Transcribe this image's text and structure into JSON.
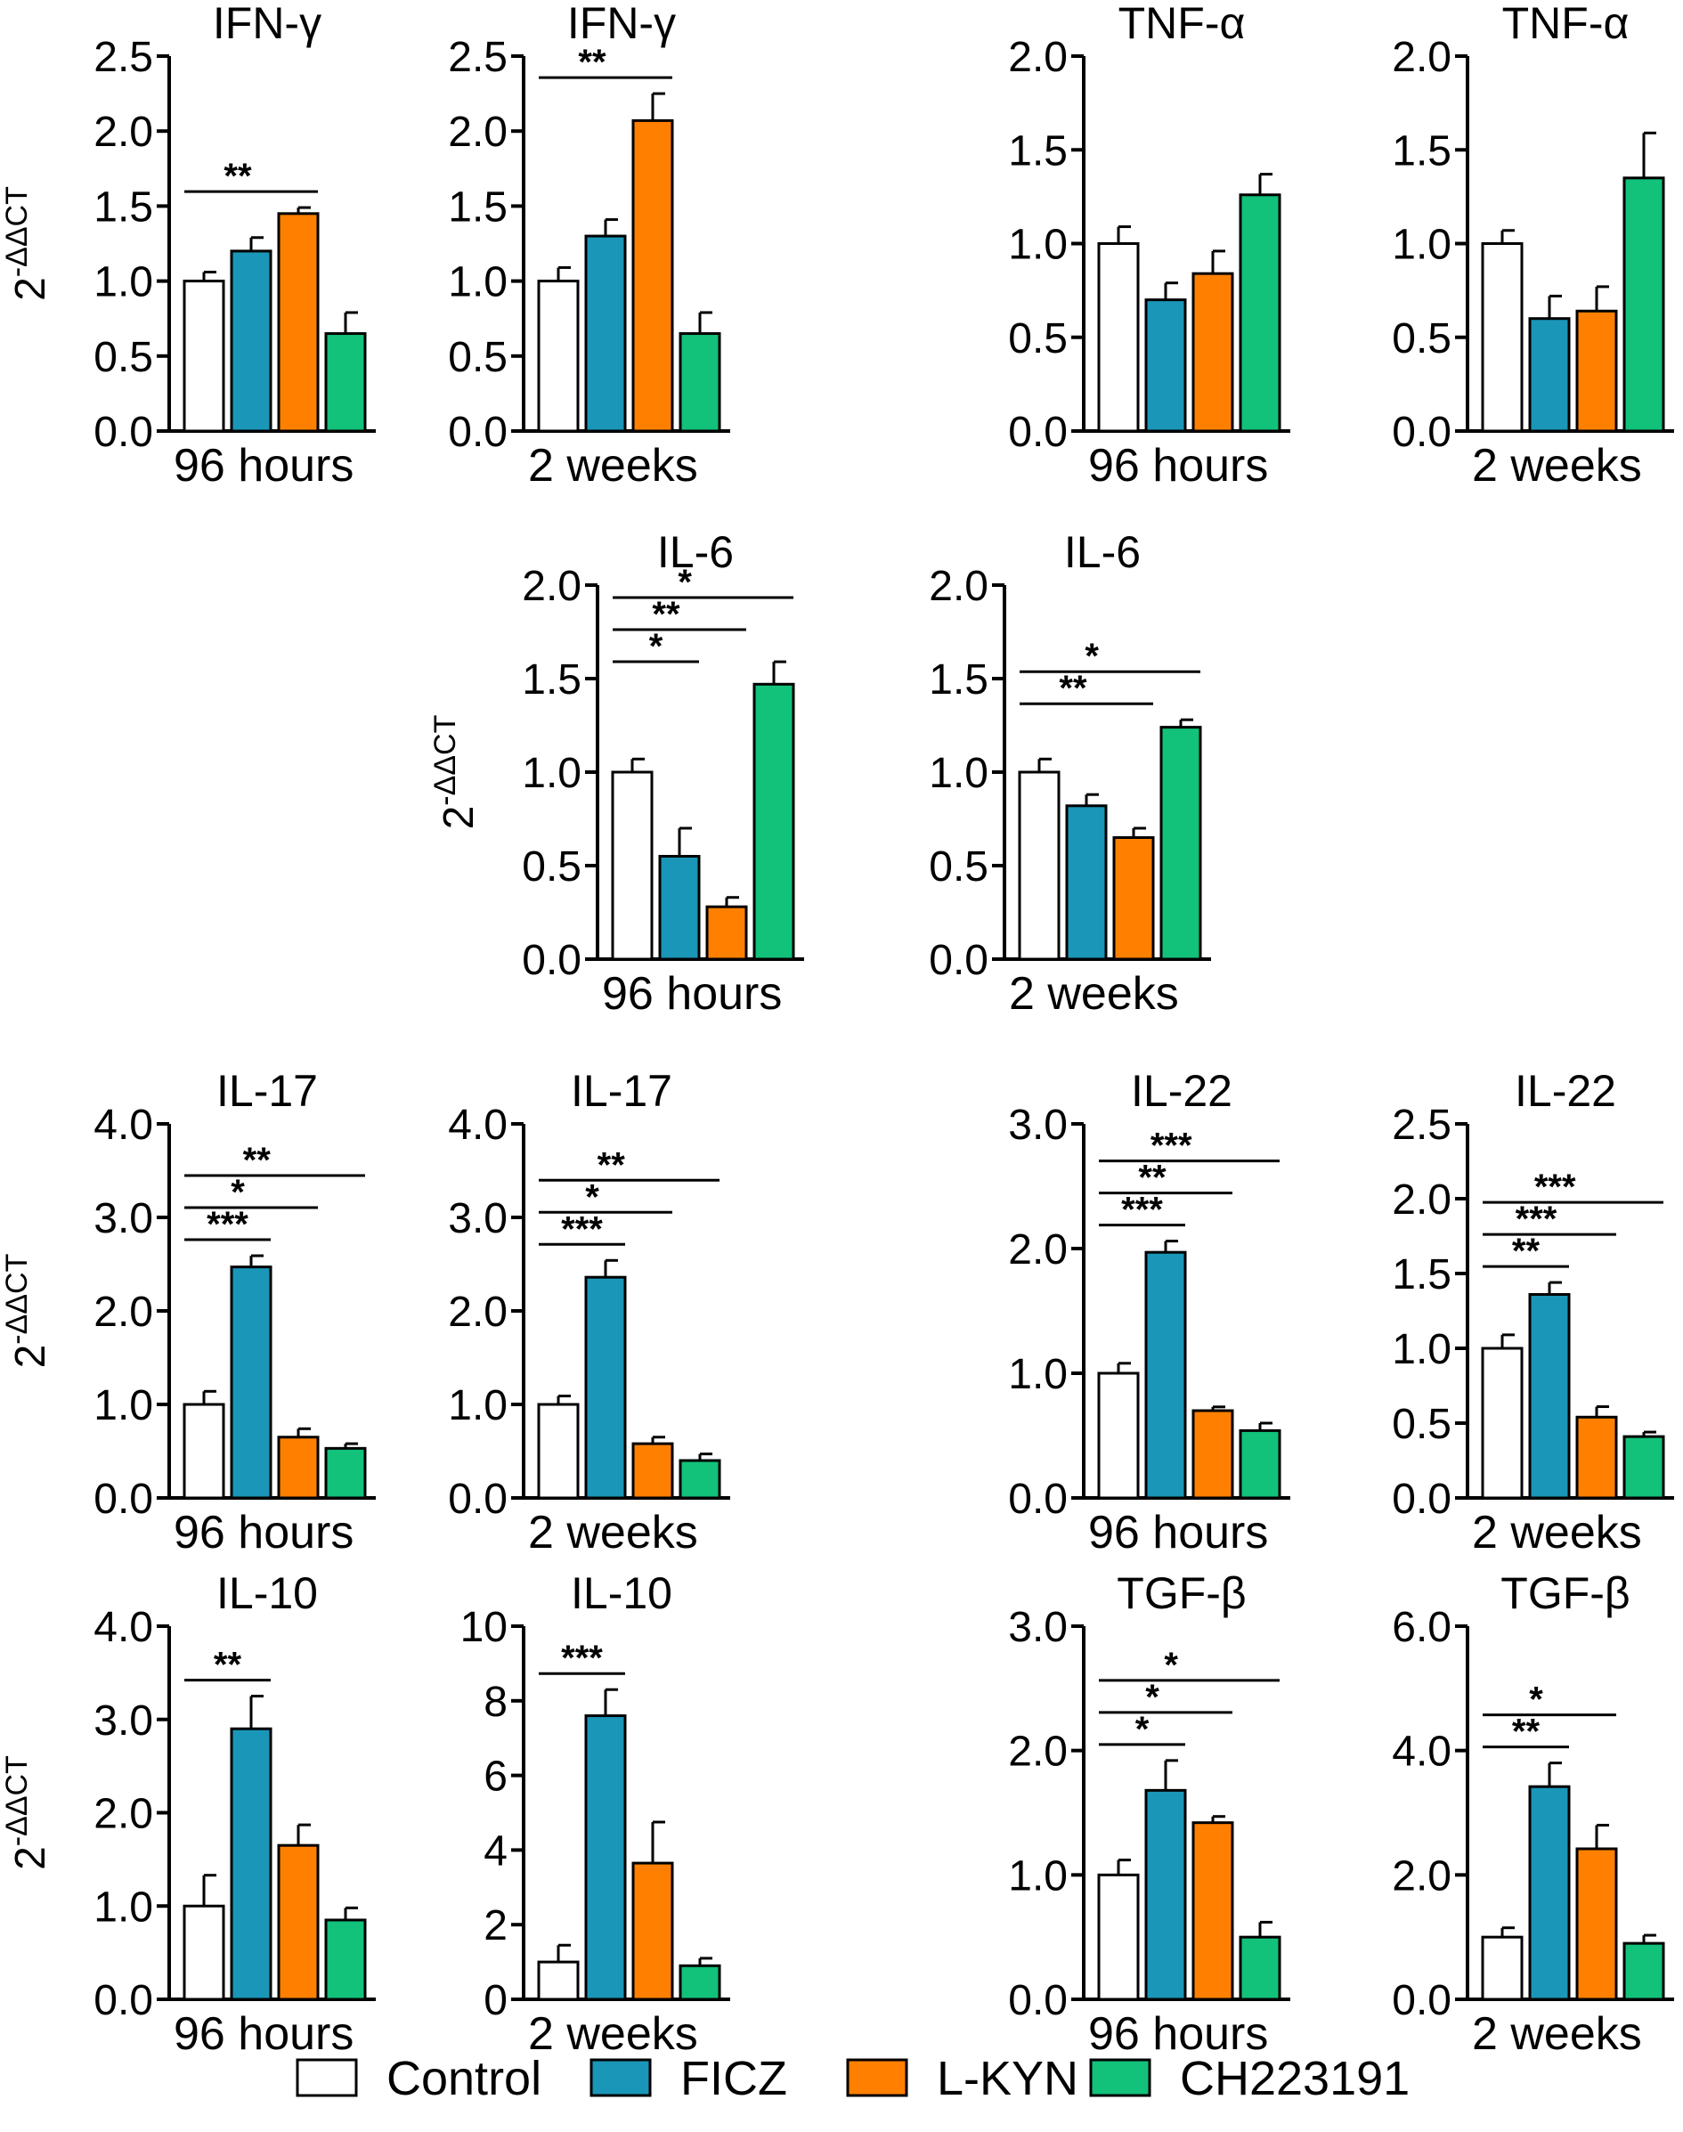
{
  "legend": [
    {
      "label": "Control",
      "color": "#ffffff"
    },
    {
      "label": "FICZ",
      "color": "#1a96b8"
    },
    {
      "label": "L-KYN",
      "color": "#ff8000"
    },
    {
      "label": "CH223191",
      "color": "#12c17a"
    }
  ],
  "ylabel_base": "2",
  "ylabel_exp": "-ΔΔCT",
  "chart_data": [
    {
      "type": "bar",
      "title": "IFN-γ",
      "xlabel": "96 hours",
      "ylim": [
        0,
        2.5
      ],
      "ticks": [
        "0.0",
        "0.5",
        "1.0",
        "1.5",
        "2.0",
        "2.5"
      ],
      "show_ylabel": true,
      "categories": [
        "Control",
        "FICZ",
        "L-KYN",
        "CH223191"
      ],
      "values": [
        1.0,
        1.2,
        1.45,
        0.65
      ],
      "errors": [
        0.06,
        0.09,
        0.04,
        0.14
      ],
      "sig": [
        {
          "from": 0,
          "to": 2,
          "label": "**"
        }
      ]
    },
    {
      "type": "bar",
      "title": "IFN-γ",
      "xlabel": "2 weeks",
      "ylim": [
        0,
        2.5
      ],
      "ticks": [
        "0.0",
        "0.5",
        "1.0",
        "1.5",
        "2.0",
        "2.5"
      ],
      "show_ylabel": false,
      "categories": [
        "Control",
        "FICZ",
        "L-KYN",
        "CH223191"
      ],
      "values": [
        1.0,
        1.3,
        2.07,
        0.65
      ],
      "errors": [
        0.09,
        0.11,
        0.18,
        0.14
      ],
      "sig": [
        {
          "from": 0,
          "to": 2,
          "label": "**"
        }
      ]
    },
    {
      "type": "bar",
      "title": "TNF-α",
      "xlabel": "96 hours",
      "ylim": [
        0,
        2.0
      ],
      "ticks": [
        "0.0",
        "0.5",
        "1.0",
        "1.5",
        "2.0"
      ],
      "show_ylabel": false,
      "categories": [
        "Control",
        "FICZ",
        "L-KYN",
        "CH223191"
      ],
      "values": [
        1.0,
        0.7,
        0.84,
        1.26
      ],
      "errors": [
        0.09,
        0.09,
        0.12,
        0.11
      ],
      "sig": []
    },
    {
      "type": "bar",
      "title": "TNF-α",
      "xlabel": "2 weeks",
      "ylim": [
        0,
        2.0
      ],
      "ticks": [
        "0.0",
        "0.5",
        "1.0",
        "1.5",
        "2.0"
      ],
      "show_ylabel": false,
      "categories": [
        "Control",
        "FICZ",
        "L-KYN",
        "CH223191"
      ],
      "values": [
        1.0,
        0.6,
        0.64,
        1.35
      ],
      "errors": [
        0.07,
        0.12,
        0.13,
        0.24
      ],
      "sig": []
    },
    {
      "type": "bar",
      "title": "IL-6",
      "xlabel": "96 hours",
      "ylim": [
        0,
        2.0
      ],
      "ticks": [
        "0.0",
        "0.5",
        "1.0",
        "1.5",
        "2.0"
      ],
      "show_ylabel": true,
      "categories": [
        "Control",
        "FICZ",
        "L-KYN",
        "CH223191"
      ],
      "values": [
        1.0,
        0.55,
        0.28,
        1.47
      ],
      "errors": [
        0.07,
        0.15,
        0.05,
        0.12
      ],
      "sig": [
        {
          "from": 0,
          "to": 1,
          "label": "*"
        },
        {
          "from": 0,
          "to": 2,
          "label": "**"
        },
        {
          "from": 0,
          "to": 3,
          "label": "*"
        }
      ]
    },
    {
      "type": "bar",
      "title": "IL-6",
      "xlabel": "2 weeks",
      "ylim": [
        0,
        2.0
      ],
      "ticks": [
        "0.0",
        "0.5",
        "1.0",
        "1.5",
        "2.0"
      ],
      "show_ylabel": false,
      "categories": [
        "Control",
        "FICZ",
        "L-KYN",
        "CH223191"
      ],
      "values": [
        1.0,
        0.82,
        0.65,
        1.24
      ],
      "errors": [
        0.07,
        0.06,
        0.05,
        0.04
      ],
      "sig": [
        {
          "from": 0,
          "to": 2,
          "label": "**"
        },
        {
          "from": 0,
          "to": 3,
          "label": "*"
        }
      ]
    },
    {
      "type": "bar",
      "title": "IL-17",
      "xlabel": "96 hours",
      "ylim": [
        0,
        4.0
      ],
      "ticks": [
        "0.0",
        "1.0",
        "2.0",
        "3.0",
        "4.0"
      ],
      "show_ylabel": true,
      "categories": [
        "Control",
        "FICZ",
        "L-KYN",
        "CH223191"
      ],
      "values": [
        1.0,
        2.47,
        0.65,
        0.53
      ],
      "errors": [
        0.14,
        0.12,
        0.09,
        0.05
      ],
      "sig": [
        {
          "from": 0,
          "to": 1,
          "label": "***"
        },
        {
          "from": 0,
          "to": 2,
          "label": "*"
        },
        {
          "from": 0,
          "to": 3,
          "label": "**"
        }
      ]
    },
    {
      "type": "bar",
      "title": "IL-17",
      "xlabel": "2 weeks",
      "ylim": [
        0,
        4.0
      ],
      "ticks": [
        "0.0",
        "1.0",
        "2.0",
        "3.0",
        "4.0"
      ],
      "show_ylabel": false,
      "categories": [
        "Control",
        "FICZ",
        "L-KYN",
        "CH223191"
      ],
      "values": [
        1.0,
        2.36,
        0.58,
        0.4
      ],
      "errors": [
        0.09,
        0.18,
        0.07,
        0.07
      ],
      "sig": [
        {
          "from": 0,
          "to": 1,
          "label": "***"
        },
        {
          "from": 0,
          "to": 2,
          "label": "*"
        },
        {
          "from": 0,
          "to": 3,
          "label": "**"
        }
      ]
    },
    {
      "type": "bar",
      "title": "IL-22",
      "xlabel": "96 hours",
      "ylim": [
        0,
        3.0
      ],
      "ticks": [
        "0.0",
        "1.0",
        "2.0",
        "3.0"
      ],
      "show_ylabel": false,
      "categories": [
        "Control",
        "FICZ",
        "L-KYN",
        "CH223191"
      ],
      "values": [
        1.0,
        1.97,
        0.7,
        0.54
      ],
      "errors": [
        0.08,
        0.09,
        0.03,
        0.06
      ],
      "sig": [
        {
          "from": 0,
          "to": 1,
          "label": "***"
        },
        {
          "from": 0,
          "to": 2,
          "label": "**"
        },
        {
          "from": 0,
          "to": 3,
          "label": "***"
        }
      ]
    },
    {
      "type": "bar",
      "title": "IL-22",
      "xlabel": "2 weeks",
      "ylim": [
        0,
        2.5
      ],
      "ticks": [
        "0.0",
        "0.5",
        "1.0",
        "1.5",
        "2.0",
        "2.5"
      ],
      "show_ylabel": false,
      "categories": [
        "Control",
        "FICZ",
        "L-KYN",
        "CH223191"
      ],
      "values": [
        1.0,
        1.36,
        0.54,
        0.41
      ],
      "errors": [
        0.09,
        0.08,
        0.07,
        0.03
      ],
      "sig": [
        {
          "from": 0,
          "to": 1,
          "label": "**"
        },
        {
          "from": 0,
          "to": 2,
          "label": "***"
        },
        {
          "from": 0,
          "to": 3,
          "label": "***"
        }
      ]
    },
    {
      "type": "bar",
      "title": "IL-10",
      "xlabel": "96 hours",
      "ylim": [
        0,
        4.0
      ],
      "ticks": [
        "0.0",
        "1.0",
        "2.0",
        "3.0",
        "4.0"
      ],
      "show_ylabel": true,
      "categories": [
        "Control",
        "FICZ",
        "L-KYN",
        "CH223191"
      ],
      "values": [
        1.0,
        2.9,
        1.65,
        0.85
      ],
      "errors": [
        0.33,
        0.35,
        0.22,
        0.13
      ],
      "sig": [
        {
          "from": 0,
          "to": 1,
          "label": "**"
        }
      ]
    },
    {
      "type": "bar",
      "title": "IL-10",
      "xlabel": "2 weeks",
      "ylim": [
        0,
        10
      ],
      "ticks": [
        "0",
        "2",
        "4",
        "6",
        "8",
        "10"
      ],
      "show_ylabel": false,
      "categories": [
        "Control",
        "FICZ",
        "L-KYN",
        "CH223191"
      ],
      "values": [
        1.0,
        7.6,
        3.65,
        0.9
      ],
      "errors": [
        0.45,
        0.7,
        1.1,
        0.2
      ],
      "sig": [
        {
          "from": 0,
          "to": 1,
          "label": "***"
        }
      ]
    },
    {
      "type": "bar",
      "title": "TGF-β",
      "xlabel": "96 hours",
      "ylim": [
        0,
        3.0
      ],
      "ticks": [
        "0.0",
        "1.0",
        "2.0",
        "3.0"
      ],
      "show_ylabel": false,
      "categories": [
        "Control",
        "FICZ",
        "L-KYN",
        "CH223191"
      ],
      "values": [
        1.0,
        1.68,
        1.42,
        0.5
      ],
      "errors": [
        0.12,
        0.24,
        0.05,
        0.12
      ],
      "sig": [
        {
          "from": 0,
          "to": 1,
          "label": "*"
        },
        {
          "from": 0,
          "to": 2,
          "label": "*"
        },
        {
          "from": 0,
          "to": 3,
          "label": "*"
        }
      ]
    },
    {
      "type": "bar",
      "title": "TGF-β",
      "xlabel": "2 weeks",
      "ylim": [
        0,
        6.0
      ],
      "ticks": [
        "0.0",
        "2.0",
        "4.0",
        "6.0"
      ],
      "show_ylabel": false,
      "categories": [
        "Control",
        "FICZ",
        "L-KYN",
        "CH223191"
      ],
      "values": [
        1.0,
        3.42,
        2.42,
        0.9
      ],
      "errors": [
        0.15,
        0.38,
        0.38,
        0.13
      ],
      "sig": [
        {
          "from": 0,
          "to": 1,
          "label": "**"
        },
        {
          "from": 0,
          "to": 2,
          "label": "*"
        }
      ]
    }
  ]
}
